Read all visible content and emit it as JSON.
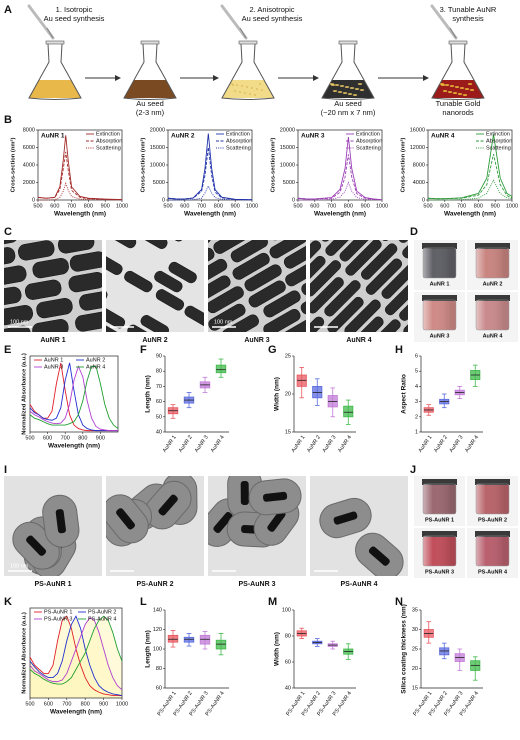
{
  "panel_labels": [
    "A",
    "B",
    "C",
    "D",
    "E",
    "F",
    "G",
    "H",
    "I",
    "J",
    "K",
    "L",
    "M",
    "N"
  ],
  "schematic": {
    "steps": [
      [
        "1. Isotropic",
        "Au seed synthesis"
      ],
      [
        "2. Anisotropic",
        "Au seed synthesis"
      ],
      [
        "3. Tunable AuNR",
        "synthesis"
      ]
    ],
    "products": [
      [
        "Au seed",
        "(2-3 nm)"
      ],
      [
        "Au seed",
        "(~20 nm x 7 nm)"
      ],
      [
        "Tunable Gold",
        "nanorods"
      ]
    ]
  },
  "tem": [
    {
      "caption": "AuNR 1",
      "scale": "100 nm"
    },
    {
      "caption": "AuNR 2"
    },
    {
      "caption": "AuNR 3",
      "scale": "100 nm"
    },
    {
      "caption": "AuNR 4"
    }
  ],
  "tem_coated": [
    {
      "caption": "PS-AuNR 1",
      "scale": "100 nm"
    },
    {
      "caption": "PS-AuNR 2"
    },
    {
      "caption": "PS-AuNR 3"
    },
    {
      "caption": "PS-AuNR 4"
    }
  ],
  "photos": [
    "AuNR 1",
    "AuNR 2",
    "AuNR 3",
    "AuNR 4"
  ],
  "photos_coated": [
    "PS-AuNR 1",
    "PS-AuNR 2",
    "PS-AuNR 3",
    "PS-AuNR 4"
  ],
  "chart_data": [
    {
      "type": "line",
      "title": "AuNR 1",
      "xlabel": "Wavelength (nm)",
      "ylabel": "Cross-section (nm²)",
      "legend": "upper right",
      "x": [
        500,
        550,
        600,
        630,
        650,
        665,
        680,
        700,
        750,
        800,
        900,
        1000
      ],
      "xlim": [
        500,
        1000
      ],
      "xticks": [
        500,
        600,
        700,
        800,
        900,
        1000
      ],
      "ylim": [
        0,
        8000
      ],
      "yticks": [
        0,
        2000,
        4000,
        6000,
        8000
      ],
      "series": [
        {
          "name": "Extinction",
          "color": "#a52a2a",
          "style": "solid",
          "values": [
            300,
            200,
            300,
            1500,
            4500,
            7400,
            4500,
            1500,
            400,
            200,
            100,
            50
          ]
        },
        {
          "name": "Absorption",
          "color": "#a52a2a",
          "style": "dashed",
          "values": [
            300,
            200,
            280,
            1200,
            3500,
            5500,
            3400,
            1100,
            300,
            150,
            80,
            40
          ]
        },
        {
          "name": "Scattering",
          "color": "#a52a2a",
          "style": "dotted",
          "values": [
            0,
            0,
            30,
            300,
            1000,
            1900,
            1100,
            400,
            100,
            50,
            20,
            10
          ]
        }
      ]
    },
    {
      "type": "line",
      "title": "AuNR 2",
      "xlabel": "Wavelength (nm)",
      "ylabel": "Cross-section (nm²)",
      "legend": "upper right",
      "x": [
        500,
        550,
        600,
        650,
        700,
        720,
        740,
        760,
        780,
        820,
        900,
        1000
      ],
      "xlim": [
        500,
        1000
      ],
      "xticks": [
        500,
        600,
        700,
        800,
        900,
        1000
      ],
      "ylim": [
        0,
        20000
      ],
      "yticks": [
        0,
        5000,
        10000,
        15000,
        20000
      ],
      "series": [
        {
          "name": "Extinction",
          "color": "#2233aa",
          "style": "solid",
          "values": [
            500,
            300,
            300,
            600,
            3000,
            9000,
            19000,
            9000,
            3000,
            800,
            200,
            100
          ]
        },
        {
          "name": "Absorption",
          "color": "#2233aa",
          "style": "dashed",
          "values": [
            500,
            300,
            300,
            500,
            2500,
            7000,
            15000,
            7000,
            2300,
            600,
            150,
            80
          ]
        },
        {
          "name": "Scattering",
          "color": "#2233aa",
          "style": "dotted",
          "values": [
            0,
            0,
            0,
            100,
            500,
            2000,
            4000,
            2000,
            700,
            200,
            50,
            20
          ]
        }
      ]
    },
    {
      "type": "line",
      "title": "AuNR 3",
      "xlabel": "Wavelength (nm)",
      "ylabel": "Cross-section (nm²)",
      "legend": "upper right",
      "x": [
        500,
        550,
        600,
        700,
        750,
        780,
        800,
        820,
        850,
        900,
        950,
        1000
      ],
      "xlim": [
        500,
        1000
      ],
      "xticks": [
        500,
        600,
        700,
        800,
        900,
        1000
      ],
      "ylim": [
        0,
        20000
      ],
      "yticks": [
        0,
        5000,
        10000,
        15000,
        20000
      ],
      "series": [
        {
          "name": "Extinction",
          "color": "#9b3fb5",
          "style": "solid",
          "values": [
            500,
            300,
            300,
            700,
            3000,
            9000,
            18000,
            9000,
            2500,
            700,
            300,
            100
          ]
        },
        {
          "name": "Absorption",
          "color": "#9b3fb5",
          "style": "dashed",
          "values": [
            500,
            300,
            300,
            500,
            2200,
            6500,
            13000,
            6500,
            1800,
            500,
            200,
            80
          ]
        },
        {
          "name": "Scattering",
          "color": "#9b3fb5",
          "style": "dotted",
          "values": [
            0,
            0,
            0,
            200,
            800,
            2500,
            5000,
            2500,
            700,
            200,
            100,
            20
          ]
        }
      ]
    },
    {
      "type": "line",
      "title": "AuNR 4",
      "xlabel": "Wavelength (nm)",
      "ylabel": "Cross-section (nm²)",
      "legend": "upper right",
      "x": [
        500,
        550,
        600,
        700,
        800,
        850,
        870,
        890,
        910,
        930,
        970,
        1000
      ],
      "xlim": [
        500,
        1000
      ],
      "xticks": [
        500,
        600,
        700,
        800,
        900,
        1000
      ],
      "ylim": [
        0,
        16000
      ],
      "yticks": [
        0,
        4000,
        8000,
        12000,
        16000
      ],
      "series": [
        {
          "name": "Extinction",
          "color": "#2e9b3a",
          "style": "solid",
          "values": [
            400,
            300,
            300,
            500,
            1500,
            5000,
            10000,
            15000,
            10000,
            5000,
            1500,
            800
          ]
        },
        {
          "name": "Absorption",
          "color": "#2e9b3a",
          "style": "dashed",
          "values": [
            400,
            300,
            300,
            400,
            1100,
            3500,
            7000,
            10500,
            7000,
            3500,
            1000,
            500
          ]
        },
        {
          "name": "Scattering",
          "color": "#2e9b3a",
          "style": "dotted",
          "values": [
            0,
            0,
            0,
            100,
            400,
            1500,
            3000,
            4500,
            3000,
            1500,
            500,
            300
          ]
        }
      ]
    },
    {
      "type": "line",
      "xlabel": "Wavelength (nm)",
      "ylabel": "Normalized Absorbance (a.u.)",
      "legend": "upper center",
      "legend_columns": 2,
      "x": [
        500,
        525,
        550,
        575,
        600,
        625,
        650,
        675,
        700,
        725,
        750,
        775,
        800,
        825,
        850,
        875,
        900,
        925,
        950,
        975,
        1000
      ],
      "xlim": [
        500,
        1000
      ],
      "xticks": [
        500,
        600,
        700,
        800,
        900
      ],
      "ylim": [
        0,
        1.1
      ],
      "series": [
        {
          "name": "AuNR 1",
          "color": "#e0202a",
          "style": "solid",
          "values": [
            0.4,
            0.3,
            0.25,
            0.2,
            0.2,
            0.3,
            0.7,
            1.0,
            0.6,
            0.25,
            0.1,
            0.05,
            0.03,
            0.02,
            0.02,
            0.02,
            0.02,
            0.02,
            0.02,
            0.02,
            0.02
          ]
        },
        {
          "name": "AuNR 2",
          "color": "#2030d0",
          "style": "solid",
          "values": [
            0.35,
            0.28,
            0.25,
            0.2,
            0.18,
            0.17,
            0.2,
            0.35,
            0.75,
            1.0,
            0.6,
            0.25,
            0.1,
            0.05,
            0.03,
            0.02,
            0.02,
            0.02,
            0.02,
            0.02,
            0.02
          ]
        },
        {
          "name": "AuNR 3",
          "color": "#b040d0",
          "style": "solid",
          "values": [
            0.3,
            0.25,
            0.22,
            0.18,
            0.15,
            0.13,
            0.12,
            0.13,
            0.2,
            0.4,
            0.75,
            0.95,
            0.8,
            0.45,
            0.2,
            0.08,
            0.04,
            0.03,
            0.02,
            0.02,
            0.02
          ]
        },
        {
          "name": "AuNR 4",
          "color": "#20a030",
          "style": "solid",
          "values": [
            0.25,
            0.2,
            0.18,
            0.15,
            0.12,
            0.1,
            0.1,
            0.1,
            0.1,
            0.12,
            0.15,
            0.25,
            0.45,
            0.75,
            0.95,
            0.95,
            0.7,
            0.4,
            0.2,
            0.1,
            0.05
          ]
        }
      ]
    },
    {
      "type": "box",
      "ylabel": "Length (nm)",
      "ylim": [
        40,
        90
      ],
      "yticks": [
        40,
        50,
        60,
        70,
        80,
        90
      ],
      "categories": [
        "AuNR 1",
        "AuNR 2",
        "AuNR 3",
        "AuNR 4"
      ],
      "colors": [
        "#e8575f",
        "#5b6be0",
        "#c27ad8",
        "#3fb94a"
      ],
      "stats": [
        {
          "min": 49,
          "q1": 52,
          "median": 54,
          "q3": 56,
          "max": 58
        },
        {
          "min": 56,
          "q1": 59,
          "median": 61,
          "q3": 63,
          "max": 66
        },
        {
          "min": 66,
          "q1": 69,
          "median": 71,
          "q3": 73,
          "max": 76
        },
        {
          "min": 76,
          "q1": 79,
          "median": 81,
          "q3": 84,
          "max": 88
        }
      ]
    },
    {
      "type": "box",
      "ylabel": "Width (nm)",
      "ylim": [
        15,
        25
      ],
      "yticks": [
        15,
        20,
        25
      ],
      "categories": [
        "AuNR 1",
        "AuNR 2",
        "AuNR 3",
        "AuNR 4"
      ],
      "colors": [
        "#e8575f",
        "#5b6be0",
        "#c27ad8",
        "#3fb94a"
      ],
      "stats": [
        {
          "min": 19.5,
          "q1": 21,
          "median": 21.8,
          "q3": 22.5,
          "max": 23.5
        },
        {
          "min": 18.5,
          "q1": 19.5,
          "median": 20.2,
          "q3": 21,
          "max": 22
        },
        {
          "min": 17,
          "q1": 18.3,
          "median": 19,
          "q3": 19.8,
          "max": 20.8
        },
        {
          "min": 16,
          "q1": 17,
          "median": 17.6,
          "q3": 18.4,
          "max": 19.2
        }
      ]
    },
    {
      "type": "box",
      "ylabel": "Aspect  Ratio",
      "ylim": [
        1,
        6
      ],
      "yticks": [
        1,
        2,
        3,
        4,
        5,
        6
      ],
      "categories": [
        "AuNR 1",
        "AuNR 2",
        "AuNR 3",
        "AuNR 4"
      ],
      "colors": [
        "#e8575f",
        "#5b6be0",
        "#c27ad8",
        "#3fb94a"
      ],
      "stats": [
        {
          "min": 2.1,
          "q1": 2.3,
          "median": 2.45,
          "q3": 2.6,
          "max": 2.8
        },
        {
          "min": 2.6,
          "q1": 2.85,
          "median": 3.0,
          "q3": 3.15,
          "max": 3.5
        },
        {
          "min": 3.2,
          "q1": 3.45,
          "median": 3.6,
          "q3": 3.75,
          "max": 4.0
        },
        {
          "min": 4.0,
          "q1": 4.45,
          "median": 4.75,
          "q3": 5.05,
          "max": 5.4
        }
      ]
    },
    {
      "type": "line",
      "xlabel": "Wavelength (nm)",
      "ylabel": "Normalized Absorbance (a.u.)",
      "legend": "upper center",
      "legend_columns": 2,
      "fill": "#fff6c0",
      "x": [
        500,
        525,
        550,
        575,
        600,
        625,
        650,
        675,
        700,
        725,
        750,
        775,
        800,
        825,
        850,
        875,
        900,
        925,
        950,
        975,
        1000
      ],
      "xlim": [
        500,
        1000
      ],
      "xticks": [
        500,
        600,
        700,
        800,
        900,
        1000
      ],
      "ylim": [
        0,
        1.1
      ],
      "series": [
        {
          "name": "PS-AuNR 1",
          "color": "#e0202a",
          "style": "solid",
          "values": [
            0.5,
            0.4,
            0.35,
            0.3,
            0.3,
            0.4,
            0.7,
            0.95,
            1.0,
            0.85,
            0.6,
            0.4,
            0.25,
            0.15,
            0.1,
            0.07,
            0.05,
            0.04,
            0.03,
            0.03,
            0.03
          ]
        },
        {
          "name": "PS-AuNR 2",
          "color": "#2030d0",
          "style": "solid",
          "values": [
            0.45,
            0.38,
            0.32,
            0.28,
            0.25,
            0.25,
            0.3,
            0.45,
            0.7,
            0.9,
            1.0,
            0.85,
            0.6,
            0.4,
            0.25,
            0.15,
            0.1,
            0.07,
            0.05,
            0.04,
            0.03
          ]
        },
        {
          "name": "PS-AuNR 3",
          "color": "#b040d0",
          "style": "solid",
          "values": [
            0.4,
            0.33,
            0.3,
            0.26,
            0.22,
            0.2,
            0.2,
            0.22,
            0.3,
            0.45,
            0.6,
            0.75,
            0.9,
            0.98,
            0.95,
            0.8,
            0.6,
            0.4,
            0.25,
            0.15,
            0.1
          ]
        },
        {
          "name": "PS-AuNR 4",
          "color": "#20a030",
          "style": "solid",
          "values": [
            0.35,
            0.3,
            0.27,
            0.23,
            0.2,
            0.18,
            0.17,
            0.17,
            0.2,
            0.25,
            0.35,
            0.45,
            0.55,
            0.7,
            0.85,
            0.95,
            1.0,
            0.95,
            0.8,
            0.6,
            0.45
          ]
        }
      ]
    },
    {
      "type": "box",
      "ylabel": "Length (nm)",
      "ylim": [
        60,
        140
      ],
      "yticks": [
        60,
        80,
        100,
        120,
        140
      ],
      "categories": [
        "PS-AuNR 1",
        "PS-AuNR 2",
        "PS-AuNR 3",
        "PS-AuNR 4"
      ],
      "colors": [
        "#e8575f",
        "#5b6be0",
        "#c27ad8",
        "#3fb94a"
      ],
      "stats": [
        {
          "min": 102,
          "q1": 107,
          "median": 110,
          "q3": 114,
          "max": 119
        },
        {
          "min": 103,
          "q1": 107,
          "median": 110,
          "q3": 112,
          "max": 116
        },
        {
          "min": 100,
          "q1": 105,
          "median": 110,
          "q3": 114,
          "max": 118
        },
        {
          "min": 94,
          "q1": 100,
          "median": 105,
          "q3": 109,
          "max": 116
        }
      ]
    },
    {
      "type": "box",
      "ylabel": "Width (nm)",
      "ylim": [
        40,
        100
      ],
      "yticks": [
        40,
        60,
        80,
        100
      ],
      "categories": [
        "PS-AuNR 1",
        "PS-AuNR 2",
        "PS-AuNR 3",
        "PS-AuNR 4"
      ],
      "colors": [
        "#e8575f",
        "#5b6be0",
        "#c27ad8",
        "#3fb94a"
      ],
      "stats": [
        {
          "min": 78,
          "q1": 80,
          "median": 82,
          "q3": 84,
          "max": 86
        },
        {
          "min": 72,
          "q1": 74,
          "median": 75,
          "q3": 76,
          "max": 78
        },
        {
          "min": 70,
          "q1": 72,
          "median": 73,
          "q3": 74,
          "max": 76
        },
        {
          "min": 62,
          "q1": 66,
          "median": 68,
          "q3": 70,
          "max": 74
        }
      ]
    },
    {
      "type": "box",
      "ylabel": "Silica coating thickness (nm)",
      "ylim": [
        15,
        35
      ],
      "yticks": [
        15,
        20,
        25,
        30,
        35
      ],
      "categories": [
        "PS-AuNR 1",
        "PS-AuNR 2",
        "PS-AuNR 3",
        "PS-AuNR 4"
      ],
      "colors": [
        "#e8575f",
        "#5b6be0",
        "#c27ad8",
        "#3fb94a"
      ],
      "stats": [
        {
          "min": 26.5,
          "q1": 28,
          "median": 29,
          "q3": 30,
          "max": 32
        },
        {
          "min": 22.5,
          "q1": 23.5,
          "median": 24.5,
          "q3": 25.3,
          "max": 26.5
        },
        {
          "min": 19.5,
          "q1": 21.8,
          "median": 22.8,
          "q3": 23.8,
          "max": 25
        },
        {
          "min": 17,
          "q1": 19.5,
          "median": 20.8,
          "q3": 22,
          "max": 23
        }
      ]
    }
  ]
}
